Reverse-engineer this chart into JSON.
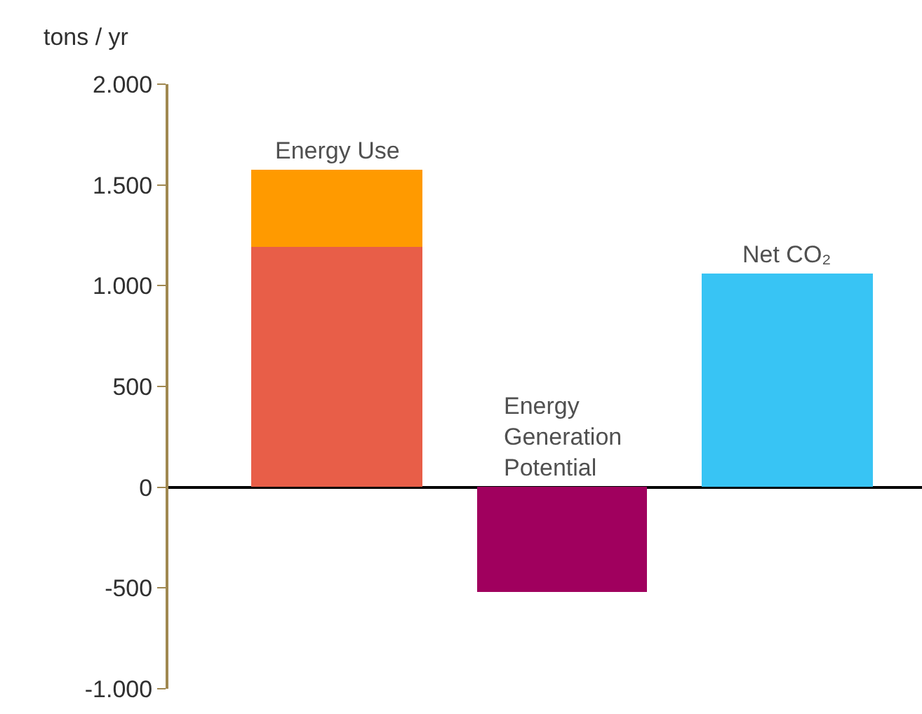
{
  "chart_data": {
    "type": "bar",
    "stacked": true,
    "ylabel": "tons / yr",
    "categories": [
      "Energy Use",
      "Energy\nGeneration\nPotential",
      "Net CO₂"
    ],
    "series": [
      {
        "colors": [
          "#e85e48",
          "#a0005e",
          "#38c4f4"
        ],
        "values": [
          1190,
          -520,
          1060
        ]
      },
      {
        "colors": [
          "#ff9a00",
          null,
          null
        ],
        "values": [
          385,
          null,
          null
        ]
      }
    ],
    "ylim": [
      -1000,
      2000
    ],
    "yticks": [
      {
        "value": -1000,
        "label": "-1.000"
      },
      {
        "value": -500,
        "label": "-500"
      },
      {
        "value": 0,
        "label": "0"
      },
      {
        "value": 500,
        "label": "500"
      },
      {
        "value": 1000,
        "label": "1.000"
      },
      {
        "value": 1500,
        "label": "1.500"
      },
      {
        "value": 2000,
        "label": "2.000"
      }
    ],
    "tick_labels": "y"
  }
}
